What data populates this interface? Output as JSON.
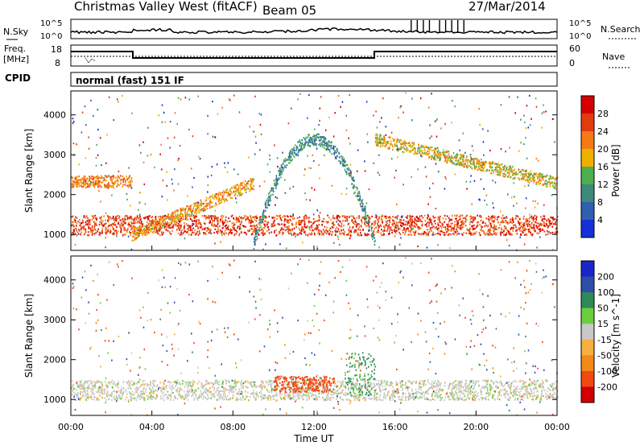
{
  "header": {
    "title": "Christmas Valley West (fitACF)",
    "beam": "Beam 05",
    "date": "27/Mar/2014"
  },
  "noise_panel": {
    "left_label": "N.Sky",
    "right_label": "N.Search",
    "ticks_left": [
      "10^5",
      "10^0"
    ],
    "ticks_right": [
      "10^5",
      "10^0"
    ]
  },
  "freq_panel": {
    "left_label_1": "Freq.",
    "left_label_2": "[MHz]",
    "right_label": "Nave",
    "ticks_left": [
      "18",
      "8"
    ],
    "ticks_right": [
      "60",
      "0"
    ]
  },
  "cpid": {
    "label": "CPID",
    "value": "normal (fast) 151 IF"
  },
  "colors": {
    "power_scale": [
      "#1530d8",
      "#2f5fb0",
      "#3e8a7a",
      "#4fae4f",
      "#f0b000",
      "#f37a15",
      "#e43a10",
      "#d60000"
    ],
    "velocity_scale": [
      "#d20000",
      "#f04a10",
      "#f28a18",
      "#f5b040",
      "#c8c8c8",
      "#6ccf3a",
      "#2f8a5a",
      "#2f4ea8",
      "#1a26c8"
    ]
  },
  "chart_data": [
    {
      "type": "heatmap",
      "name": "power",
      "xlabel": "Time UT",
      "ylabel": "Slant Range [km]",
      "x_ticks": [
        "00:00",
        "04:00",
        "08:00",
        "12:00",
        "16:00",
        "20:00",
        "00:00"
      ],
      "y_ticks": [
        "1000",
        "2000",
        "3000",
        "4000"
      ],
      "ylim": [
        600,
        4600
      ],
      "colorbar": {
        "label": "Power [dB]",
        "ticks": [
          "4",
          "8",
          "12",
          "16",
          "20",
          "24",
          "28"
        ],
        "range": [
          0,
          32
        ]
      },
      "features": [
        {
          "id": "near-band",
          "t_start": 0.0,
          "t_end": 24.0,
          "range_low": 1000,
          "range_high": 1500,
          "power": 26
        },
        {
          "id": "upper-band-early",
          "t_start": 0.0,
          "t_end": 3.0,
          "range_low": 2200,
          "range_high": 2500,
          "power": 22
        },
        {
          "id": "rising-arc",
          "t_start": 3.0,
          "t_end": 9.0,
          "range_start": 1000,
          "range_end": 2300,
          "power": 20
        },
        {
          "id": "ionospheric-arc",
          "t_start": 9.0,
          "t_end": 15.0,
          "range_peak": 3400,
          "power": 10
        },
        {
          "id": "evening-decline",
          "t_start": 15.0,
          "t_end": 24.0,
          "range_start": 3400,
          "range_end": 2300,
          "power": 18
        }
      ]
    },
    {
      "type": "heatmap",
      "name": "velocity",
      "xlabel": "Time UT",
      "ylabel": "Slant Range [km]",
      "x_ticks": [
        "00:00",
        "04:00",
        "08:00",
        "12:00",
        "16:00",
        "20:00",
        "00:00"
      ],
      "y_ticks": [
        "1000",
        "2000",
        "3000",
        "4000"
      ],
      "ylim": [
        600,
        4600
      ],
      "colorbar": {
        "label": "Velocity [m s^-1]",
        "ticks": [
          "200",
          "100",
          "50",
          "15",
          "-15",
          "-50",
          "-100",
          "-200"
        ],
        "range": [
          -250,
          250
        ]
      },
      "features": [
        {
          "id": "ground-scatter",
          "t_start": 0.0,
          "t_end": 24.0,
          "range_low": 1000,
          "range_high": 1500,
          "velocity": 0
        },
        {
          "id": "westward-flow",
          "t_start": 10.0,
          "t_end": 13.0,
          "range_low": 1200,
          "range_high": 1600,
          "velocity": -150
        },
        {
          "id": "green-arc",
          "t_start": 13.5,
          "t_end": 15.0,
          "range_low": 1100,
          "range_high": 2200,
          "velocity": 60
        }
      ]
    }
  ]
}
